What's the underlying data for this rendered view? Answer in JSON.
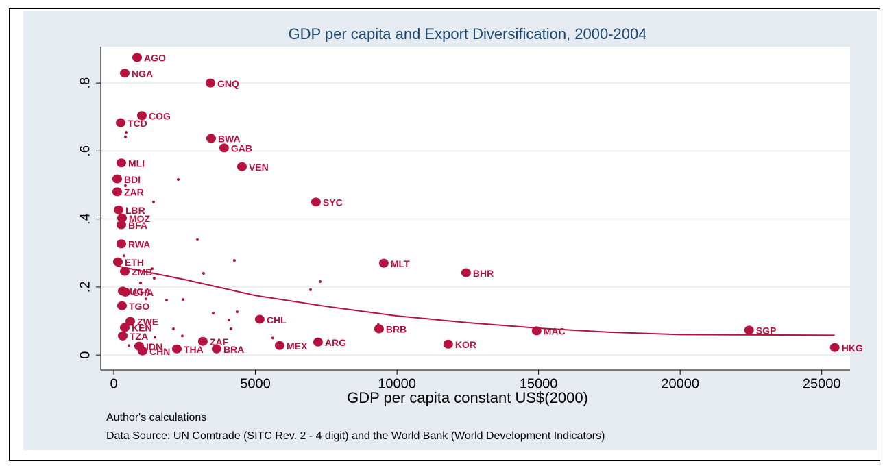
{
  "chart_data": {
    "type": "scatter",
    "title": "GDP per capita and Export Diversification, 2000-2004",
    "x_label": "GDP per capita constant US$(2000)",
    "notes": [
      "Author's calculations",
      "Data Source: UN Comtrade (SITC Rev. 2 - 4 digit) and the World Bank (World Development Indicators)"
    ],
    "color": "#b5123f",
    "grid": true,
    "xlim": [
      -460,
      26000
    ],
    "ylim": [
      -0.044,
      0.907
    ],
    "xticks": [
      0,
      5000,
      10000,
      15000,
      20000,
      25000
    ],
    "yticks": [
      0,
      {
        "value": 0.2,
        "label": ".2"
      },
      {
        "value": 0.4,
        "label": ".4"
      },
      {
        "value": 0.6,
        "label": ".6"
      },
      {
        "value": 0.8,
        "label": ".8"
      }
    ],
    "points": {
      "labels": [
        "AGO",
        "NGA",
        "GNQ",
        "COG",
        "TCD",
        "BWA",
        "GAB",
        "MLI",
        "VEN",
        "BDI",
        "ZAR",
        "SYC",
        "LBR",
        "MOZ",
        "BFA",
        "RWA",
        "ETH",
        "MLT",
        "BHR",
        "ZMB",
        "UGA",
        "GHA",
        "TGO",
        "CHL",
        "ZWE",
        "KEN",
        "BRB",
        "MAC",
        "SGP",
        "TZA",
        "ZAF",
        "ARG",
        "KOR",
        "MEX",
        "IDN",
        "HKG",
        "THA",
        "BRA",
        "CHN"
      ],
      "x": [
        823,
        387,
        3412,
        992,
        242,
        3437,
        3896,
        266,
        4526,
        121,
        121,
        7139,
        169,
        290,
        266,
        266,
        145,
        9535,
        12440,
        387,
        315,
        411,
        290,
        5155,
        581,
        387,
        9366,
        14932,
        22435,
        315,
        3146,
        7212,
        11810,
        5857,
        895,
        25460,
        2227,
        3630,
        1016
      ],
      "values": [
        0.875,
        0.829,
        0.8,
        0.704,
        0.683,
        0.637,
        0.609,
        0.565,
        0.554,
        0.518,
        0.48,
        0.45,
        0.427,
        0.403,
        0.383,
        0.327,
        0.274,
        0.27,
        0.242,
        0.246,
        0.188,
        0.185,
        0.145,
        0.105,
        0.099,
        0.081,
        0.077,
        0.071,
        0.073,
        0.056,
        0.04,
        0.038,
        0.032,
        0.028,
        0.026,
        0.022,
        0.018,
        0.018,
        0.012
      ]
    },
    "small_points": {
      "x": [
        436,
        411,
        2275,
        411,
        1404,
        2953,
        4259,
        363,
        3170,
        7285,
        6946,
        1355,
        1428,
        944,
        1137,
        1864,
        2444,
        4356,
        3509,
        4066,
        4138,
        5615,
        9342,
        2106,
        1452,
        2420,
        532
      ],
      "values": [
        0.655,
        0.641,
        0.516,
        0.498,
        0.45,
        0.339,
        0.278,
        0.292,
        0.24,
        0.216,
        0.192,
        0.254,
        0.226,
        0.212,
        0.165,
        0.161,
        0.163,
        0.127,
        0.123,
        0.103,
        0.077,
        0.05,
        0.089,
        0.077,
        0.052,
        0.056,
        0.028
      ]
    },
    "fit": {
      "x": [
        97,
        2500,
        5000,
        7500,
        10000,
        12500,
        15000,
        17500,
        20000,
        25460
      ],
      "values": [
        0.262,
        0.222,
        0.175,
        0.143,
        0.115,
        0.095,
        0.079,
        0.067,
        0.06,
        0.058
      ]
    }
  }
}
